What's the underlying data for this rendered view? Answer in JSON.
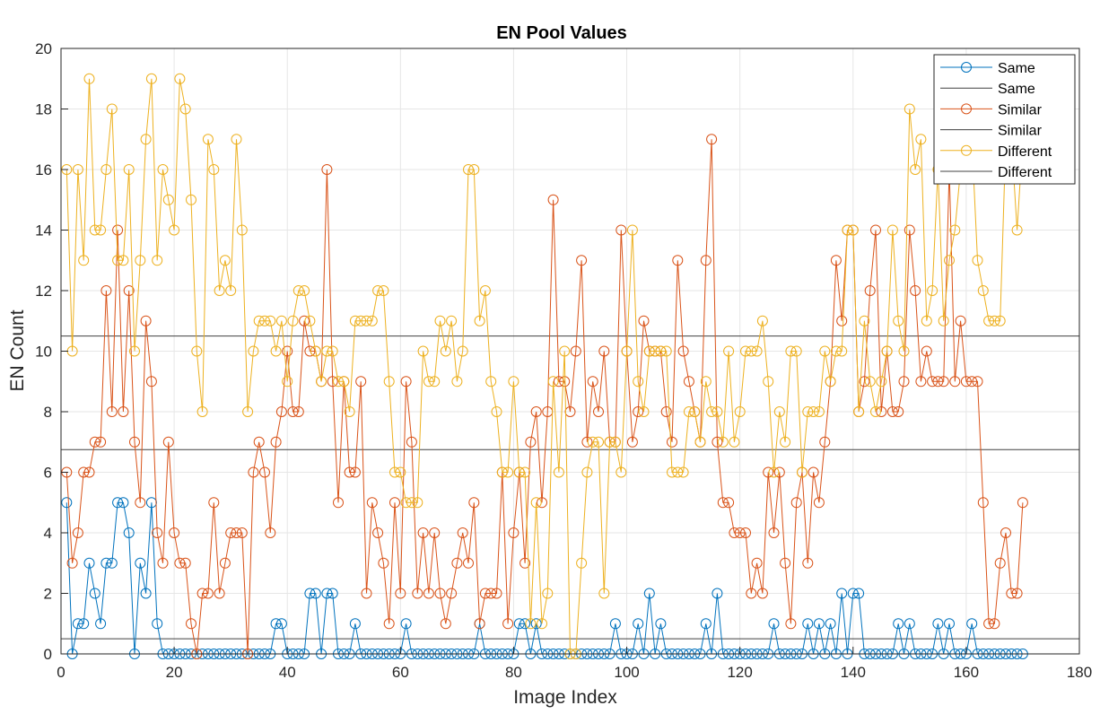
{
  "chart_data": {
    "type": "line",
    "title": "EN Pool Values",
    "xlabel": "Image Index",
    "ylabel": "EN Count",
    "xlim": [
      0,
      180
    ],
    "ylim": [
      0,
      20
    ],
    "xticks": [
      0,
      20,
      40,
      60,
      80,
      100,
      120,
      140,
      160,
      180
    ],
    "yticks": [
      0,
      2,
      4,
      6,
      8,
      10,
      12,
      14,
      16,
      18,
      20
    ],
    "grid": true,
    "legend_position": "top-right",
    "colors": {
      "same": "#0072BD",
      "similar": "#D95319",
      "different": "#EDB120",
      "mean": "#404040",
      "grid": "#e6e6e6"
    },
    "series": [
      {
        "name": "Same",
        "color": "#0072BD",
        "marker": "circle",
        "values": [
          5,
          0,
          1,
          1,
          3,
          2,
          1,
          3,
          3,
          5,
          5,
          4,
          0,
          3,
          2,
          5,
          1,
          0,
          0,
          0,
          0,
          0,
          0,
          0,
          0,
          0,
          0,
          0,
          0,
          0,
          0,
          0,
          0,
          0,
          0,
          0,
          0,
          1,
          1,
          0,
          0,
          0,
          0,
          2,
          2,
          0,
          2,
          2,
          0,
          0,
          0,
          1,
          0,
          0,
          0,
          0,
          0,
          0,
          0,
          0,
          1,
          0,
          0,
          0,
          0,
          0,
          0,
          0,
          0,
          0,
          0,
          0,
          0,
          1,
          0,
          0,
          0,
          0,
          0,
          0,
          1,
          1,
          0,
          1,
          0,
          0,
          0,
          0,
          0,
          0,
          0,
          0,
          0,
          0,
          0,
          0,
          0,
          1,
          0,
          0,
          0,
          1,
          0,
          2,
          0,
          1,
          0,
          0,
          0,
          0,
          0,
          0,
          0,
          1,
          0,
          2,
          0,
          0,
          0,
          0,
          0,
          0,
          0,
          0,
          0,
          1,
          0,
          0,
          0,
          0,
          0,
          1,
          0,
          1,
          0,
          1,
          0,
          2,
          0,
          2,
          2,
          0,
          0,
          0,
          0,
          0,
          0,
          1,
          0,
          1,
          0,
          0,
          0,
          0,
          1,
          0,
          1,
          0,
          0,
          0,
          1,
          0,
          0,
          0,
          0,
          0,
          0,
          0,
          0,
          0
        ]
      },
      {
        "name": "Same",
        "color": "#404040",
        "marker": "none",
        "values": [
          0.5
        ]
      },
      {
        "name": "Similar",
        "color": "#D95319",
        "marker": "circle",
        "values": [
          6,
          3,
          4,
          6,
          6,
          7,
          7,
          12,
          8,
          14,
          8,
          12,
          7,
          5,
          11,
          9,
          4,
          3,
          7,
          4,
          3,
          3,
          1,
          0,
          2,
          2,
          5,
          2,
          3,
          4,
          4,
          4,
          0,
          6,
          7,
          6,
          4,
          7,
          8,
          10,
          8,
          8,
          11,
          10,
          10,
          9,
          16,
          9,
          5,
          9,
          6,
          6,
          9,
          2,
          5,
          4,
          3,
          1,
          5,
          2,
          9,
          7,
          2,
          4,
          2,
          4,
          2,
          1,
          2,
          3,
          4,
          3,
          5,
          1,
          2,
          2,
          2,
          6,
          1,
          4,
          6,
          3,
          7,
          8,
          5,
          8,
          15,
          9,
          9,
          8,
          10,
          13,
          7,
          9,
          8,
          10,
          7,
          7,
          14,
          10,
          7,
          8,
          11,
          10,
          10,
          10,
          8,
          7,
          13,
          10,
          9,
          8,
          7,
          13,
          17,
          7,
          5,
          5,
          4,
          4,
          4,
          2,
          3,
          2,
          6,
          4,
          6,
          3,
          1,
          5,
          6,
          3,
          6,
          5,
          7,
          9,
          13,
          11,
          14,
          14,
          8,
          9,
          12,
          14,
          8,
          10,
          8,
          8,
          9,
          14,
          12,
          9,
          10,
          9,
          9,
          9,
          16,
          9,
          11,
          9,
          9,
          9,
          5,
          1,
          1,
          3,
          4,
          2,
          2,
          5
        ]
      },
      {
        "name": "Similar",
        "color": "#404040",
        "marker": "none",
        "values": [
          6.75
        ]
      },
      {
        "name": "Different",
        "color": "#EDB120",
        "marker": "circle",
        "values": [
          16,
          10,
          16,
          13,
          19,
          14,
          14,
          16,
          18,
          13,
          13,
          16,
          10,
          13,
          17,
          19,
          13,
          16,
          15,
          14,
          19,
          18,
          15,
          10,
          8,
          17,
          16,
          12,
          13,
          12,
          17,
          14,
          8,
          10,
          11,
          11,
          11,
          10,
          11,
          9,
          11,
          12,
          12,
          11,
          10,
          9,
          10,
          10,
          9,
          9,
          8,
          11,
          11,
          11,
          11,
          12,
          12,
          9,
          6,
          6,
          5,
          5,
          5,
          10,
          9,
          9,
          11,
          10,
          11,
          9,
          10,
          16,
          16,
          11,
          12,
          9,
          8,
          6,
          6,
          9,
          6,
          6,
          1,
          5,
          1,
          2,
          9,
          6,
          10,
          0,
          0,
          3,
          6,
          7,
          7,
          2,
          7,
          7,
          6,
          10,
          14,
          9,
          8,
          10,
          10,
          10,
          10,
          6,
          6,
          6,
          8,
          8,
          7,
          9,
          8,
          8,
          7,
          10,
          7,
          8,
          10,
          10,
          10,
          11,
          9,
          6,
          8,
          7,
          10,
          10,
          6,
          8,
          8,
          8,
          10,
          9,
          10,
          10,
          14,
          14,
          8,
          11,
          9,
          8,
          9,
          10,
          14,
          11,
          10,
          18,
          16,
          17,
          11,
          12,
          16,
          11,
          13,
          14,
          16,
          16,
          17,
          13,
          12,
          11,
          11,
          11,
          17,
          17,
          14,
          17
        ]
      },
      {
        "name": "Different",
        "color": "#404040",
        "marker": "none",
        "values": [
          10.5
        ]
      }
    ]
  }
}
